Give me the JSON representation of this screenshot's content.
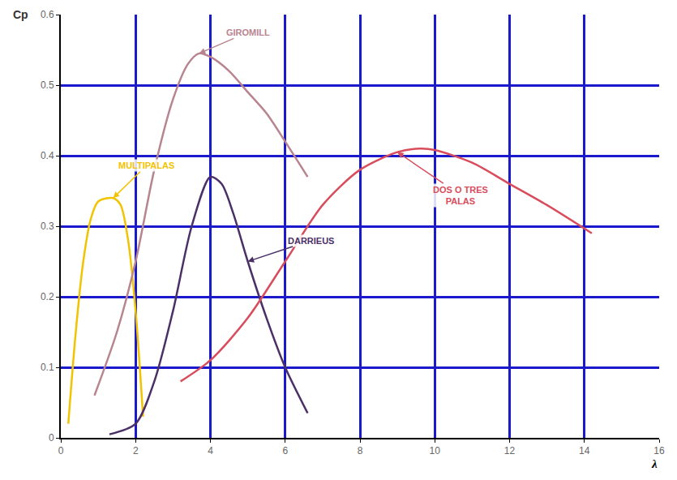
{
  "chart_data": {
    "type": "line",
    "x_label": "λ",
    "y_label": "Cp",
    "xlim": [
      0,
      16
    ],
    "xticks": [
      0,
      2,
      4,
      6,
      8,
      10,
      12,
      14,
      16
    ],
    "ylim": [
      0,
      0.6
    ],
    "yticks": [
      0,
      0.1,
      0.2,
      0.3,
      0.4,
      0.5,
      0.6
    ],
    "grid": true,
    "series": [
      {
        "name": "MULTIPALAS",
        "color": "#f2c300",
        "x": [
          0.2,
          0.4,
          0.6,
          0.8,
          1.0,
          1.4,
          1.6,
          1.8,
          2.0,
          2.2
        ],
        "values": [
          0.02,
          0.15,
          0.25,
          0.31,
          0.335,
          0.34,
          0.33,
          0.28,
          0.18,
          0.03
        ]
      },
      {
        "name": "GIROMILL",
        "color": "#b8848f",
        "x": [
          0.9,
          1.5,
          2.0,
          2.5,
          3.0,
          3.4,
          3.7,
          4.0,
          4.5,
          5.0,
          5.5,
          6.0,
          6.6
        ],
        "values": [
          0.06,
          0.15,
          0.25,
          0.38,
          0.48,
          0.53,
          0.545,
          0.54,
          0.52,
          0.49,
          0.46,
          0.42,
          0.37
        ]
      },
      {
        "name": "DARRIEUS",
        "color": "#4b3068",
        "x": [
          1.3,
          2.0,
          2.5,
          3.0,
          3.5,
          4.0,
          4.3,
          4.6,
          5.0,
          5.5,
          6.0,
          6.6
        ],
        "values": [
          0.005,
          0.02,
          0.08,
          0.18,
          0.3,
          0.37,
          0.36,
          0.32,
          0.25,
          0.17,
          0.1,
          0.035
        ]
      },
      {
        "name": "DOS O TRES PALAS",
        "color": "#d94c5c",
        "x": [
          3.2,
          4.0,
          5.0,
          6.0,
          7.0,
          8.0,
          9.0,
          9.6,
          10.0,
          11.0,
          12.0,
          13.0,
          14.2
        ],
        "values": [
          0.08,
          0.11,
          0.17,
          0.25,
          0.33,
          0.38,
          0.405,
          0.41,
          0.408,
          0.39,
          0.36,
          0.33,
          0.29
        ]
      }
    ]
  }
}
